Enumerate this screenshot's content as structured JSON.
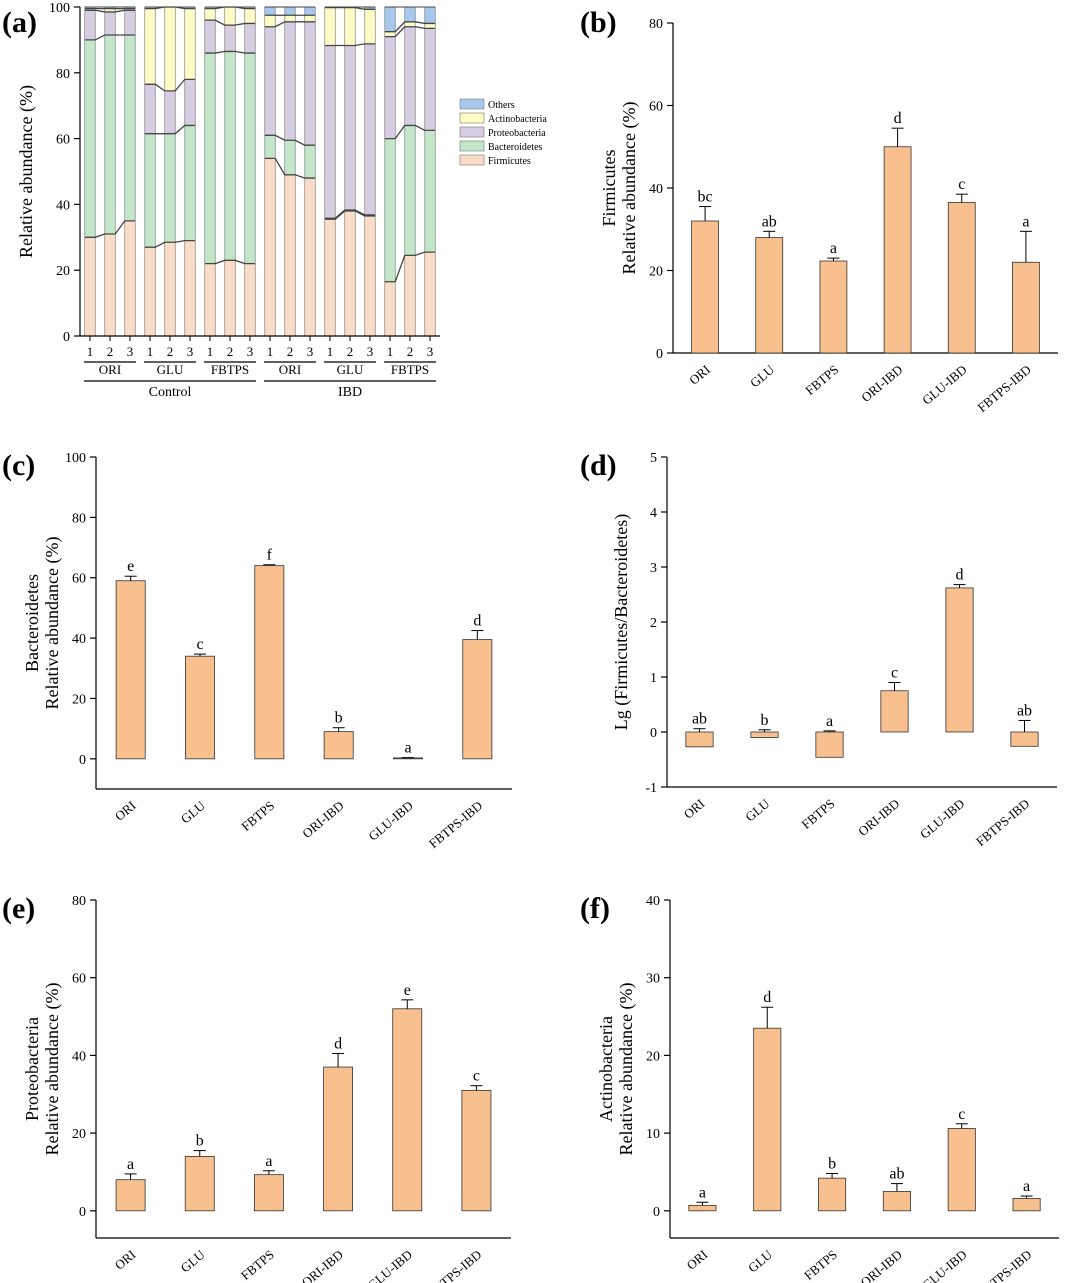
{
  "figure": {
    "colors": {
      "Others": "#a6c8ec",
      "Actinobacteria": "#fefbc4",
      "Proteobacteria": "#d7cde2",
      "Bacteroidetes": "#c2e6c8",
      "Firmicutes": "#fbdcc6",
      "bar": "#f9c08f"
    }
  },
  "chart_data": [
    {
      "id": "a",
      "panel": "(a)",
      "type": "bar",
      "stacked": true,
      "ylabel": "Relative abundance (%)",
      "ylim": [
        0,
        100
      ],
      "yticks": [
        0,
        20,
        40,
        60,
        80,
        100
      ],
      "categories": [
        "1",
        "2",
        "3",
        "1",
        "2",
        "3",
        "1",
        "2",
        "3",
        "1",
        "2",
        "3",
        "1",
        "2",
        "3",
        "1",
        "2",
        "3"
      ],
      "subgroups": [
        "ORI",
        "GLU",
        "FBTPS",
        "ORI",
        "GLU",
        "FBTPS"
      ],
      "groups": [
        "Control",
        "IBD"
      ],
      "legend": [
        "Others",
        "Actinobacteria",
        "Proteobacteria",
        "Bacteroidetes",
        "Firmicutes"
      ],
      "series": [
        {
          "name": "Firmicutes",
          "values": [
            30,
            31,
            35,
            27,
            28.5,
            29,
            22,
            23,
            22,
            54,
            49,
            48,
            35.5,
            38,
            36.5,
            16.5,
            24.5,
            25.5
          ]
        },
        {
          "name": "Bacteroidetes",
          "values": [
            60,
            60.5,
            56.5,
            34.5,
            33,
            35,
            64,
            63.5,
            64,
            7,
            10.5,
            10,
            0.3,
            0.3,
            0.3,
            43.5,
            39.5,
            37
          ]
        },
        {
          "name": "Proteobacteria",
          "values": [
            9,
            7,
            7.5,
            15,
            13,
            14,
            10,
            8,
            9,
            33,
            36,
            37.5,
            52.5,
            50,
            52,
            31,
            30,
            31
          ]
        },
        {
          "name": "Actinobacteria",
          "values": [
            0.5,
            1,
            0.5,
            23,
            25.5,
            21.5,
            3.5,
            5.5,
            4.5,
            3.5,
            2,
            2,
            11.5,
            11.5,
            10.5,
            1.5,
            1.5,
            1.5
          ]
        },
        {
          "name": "Others",
          "values": [
            0.5,
            0.5,
            0.5,
            0.5,
            0,
            0.5,
            0.5,
            0,
            0.5,
            2.5,
            2.5,
            2.5,
            0.2,
            0.2,
            0.7,
            7.5,
            4.5,
            5
          ]
        }
      ]
    },
    {
      "id": "b",
      "panel": "(b)",
      "type": "bar",
      "ylabel": "Firmicutes",
      "ylabel2": "Relative abundance (%)",
      "ylim": [
        0,
        80
      ],
      "yticks": [
        0,
        20,
        40,
        60,
        80
      ],
      "categories": [
        "ORI",
        "GLU",
        "FBTPS",
        "ORI-IBD",
        "GLU-IBD",
        "FBTPS-IBD"
      ],
      "values": [
        32,
        28,
        22.3,
        50,
        36.5,
        22
      ],
      "errors": [
        3.5,
        1.5,
        0.7,
        4.5,
        2,
        7.5
      ],
      "labels": [
        "bc",
        "ab",
        "a",
        "d",
        "c",
        "a"
      ]
    },
    {
      "id": "c",
      "panel": "(c)",
      "type": "bar",
      "ylabel": "Bacteroidetes",
      "ylabel2": "Relative abundance (%)",
      "ylim": [
        -10,
        100
      ],
      "yticks": [
        0,
        20,
        40,
        60,
        80,
        100
      ],
      "categories": [
        "ORI",
        "GLU",
        "FBTPS",
        "ORI-IBD",
        "GLU-IBD",
        "FBTPS-IBD"
      ],
      "values": [
        59,
        34,
        64,
        9,
        0.3,
        39.5
      ],
      "errors": [
        1.5,
        0.7,
        0.3,
        1.3,
        0.1,
        3
      ],
      "labels": [
        "e",
        "c",
        "f",
        "b",
        "a",
        "d"
      ]
    },
    {
      "id": "d",
      "panel": "(d)",
      "type": "bar",
      "ylabel": "Lg (Firmicutes/Bacteroidetes)",
      "ylim": [
        -1,
        5
      ],
      "yticks": [
        -1,
        0,
        1,
        2,
        3,
        4,
        5
      ],
      "categories": [
        "ORI",
        "GLU",
        "FBTPS",
        "ORI-IBD",
        "GLU-IBD",
        "FBTPS-IBD"
      ],
      "values": [
        -0.27,
        -0.1,
        -0.46,
        0.75,
        2.62,
        -0.26
      ],
      "errors": [
        0.06,
        0.04,
        0.02,
        0.15,
        0.06,
        0.21
      ],
      "labels": [
        "ab",
        "b",
        "a",
        "c",
        "d",
        "ab"
      ]
    },
    {
      "id": "e",
      "panel": "(e)",
      "type": "bar",
      "ylabel": "Proteobacteria",
      "ylabel2": "Relative abundance (%)",
      "ylim": [
        -7,
        80
      ],
      "yticks": [
        0,
        20,
        40,
        60,
        80
      ],
      "categories": [
        "ORI",
        "GLU",
        "FBTPS",
        "ORI-IBD",
        "GLU-IBD",
        "FBTPS-IBD"
      ],
      "values": [
        8,
        14,
        9.3,
        37,
        52,
        31
      ],
      "errors": [
        1.5,
        1.5,
        1,
        3.5,
        2.3,
        1.2
      ],
      "labels": [
        "a",
        "b",
        "a",
        "d",
        "e",
        "c"
      ]
    },
    {
      "id": "f",
      "panel": "(f)",
      "type": "bar",
      "ylabel": "Actinobacteria",
      "ylabel2": "Relative abundance (%)",
      "ylim": [
        -3.5,
        40
      ],
      "yticks": [
        0,
        10,
        20,
        30,
        40
      ],
      "categories": [
        "ORI",
        "GLU",
        "FBTPS",
        "ORI-IBD",
        "GLU-IBD",
        "FBTPS-IBD"
      ],
      "values": [
        0.7,
        23.5,
        4.2,
        2.5,
        10.6,
        1.6
      ],
      "errors": [
        0.4,
        2.7,
        0.6,
        1,
        0.6,
        0.3
      ],
      "labels": [
        "a",
        "d",
        "b",
        "ab",
        "c",
        "a"
      ]
    }
  ]
}
